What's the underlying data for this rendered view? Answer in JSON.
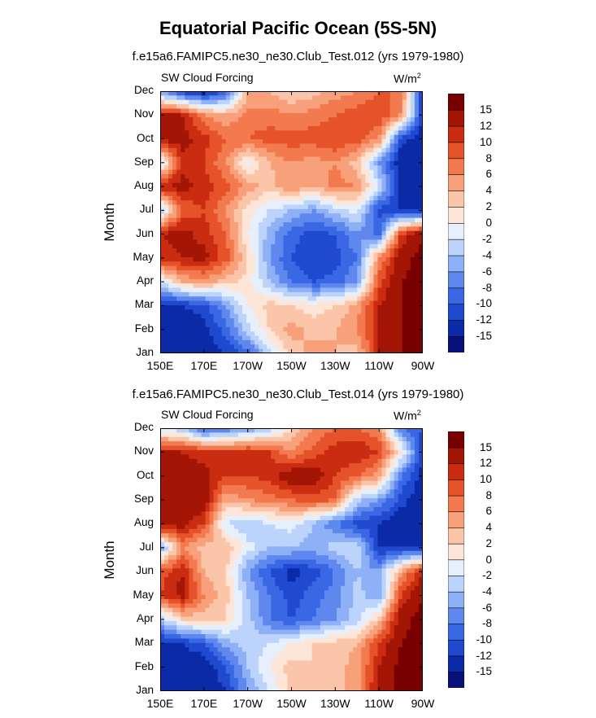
{
  "figure": {
    "title": "Equatorial Pacific Ocean (5S-5N)"
  },
  "chart_data": [
    {
      "type": "heatmap",
      "subtitle": "f.e15a6.FAMIPC5.ne30_ne30.Club_Test.012 (yrs 1979-1980)",
      "left_label": "SW Cloud Forcing",
      "units": "W/m",
      "units_sup": "2",
      "ylabel": "Month",
      "xlabel": "",
      "y": [
        "Jan",
        "Feb",
        "Mar",
        "Apr",
        "May",
        "Jun",
        "Jul",
        "Aug",
        "Sep",
        "Oct",
        "Nov",
        "Dec"
      ],
      "x_ticks": [
        "150E",
        "170E",
        "170W",
        "150W",
        "130W",
        "110W",
        "90W"
      ],
      "x_range": [
        150,
        270
      ],
      "colorbar": {
        "levels": [
          "-15",
          "-12",
          "-10",
          "-8",
          "-6",
          "-4",
          "-2",
          "0",
          "2",
          "4",
          "6",
          "8",
          "10",
          "12",
          "15"
        ],
        "colors": [
          "#08107a",
          "#0a2aa8",
          "#1f4ad0",
          "#3a68e4",
          "#5e88ee",
          "#8eb0f6",
          "#bcd3fb",
          "#e6f0fd",
          "#fde6d8",
          "#fbc5aa",
          "#f7a07a",
          "#f27a4e",
          "#e6522a",
          "#c92c10",
          "#a31505",
          "#780000"
        ]
      },
      "grid": {
        "x": [
          150,
          160,
          170,
          180,
          190,
          200,
          210,
          220,
          230,
          240,
          250,
          260,
          270
        ],
        "values": [
          [
            -14,
            -14,
            -14,
            -12,
            -9,
            -3,
            3,
            5,
            4,
            3,
            12,
            15,
            16
          ],
          [
            -14,
            -14,
            -13,
            -9,
            -3,
            2,
            5,
            3,
            4,
            6,
            12,
            15,
            16
          ],
          [
            -13,
            -12,
            -11,
            -6,
            0,
            3,
            2,
            1,
            2,
            5,
            12,
            15,
            16
          ],
          [
            -2,
            4,
            5,
            3,
            1,
            -4,
            -8,
            -10,
            -9,
            -6,
            9,
            15,
            16
          ],
          [
            11,
            12,
            13,
            9,
            2,
            -6,
            -10,
            -12,
            -11,
            -8,
            6,
            14,
            16
          ],
          [
            12,
            13,
            11,
            8,
            0,
            -5,
            -9,
            -11,
            -10,
            -6,
            -9,
            10,
            15
          ],
          [
            -4,
            8,
            10,
            6,
            1,
            -2,
            -4,
            -6,
            -3,
            -1,
            -11,
            -12,
            -13
          ],
          [
            12,
            13,
            11,
            9,
            5,
            3,
            6,
            4,
            7,
            6,
            -2,
            -13,
            -14
          ],
          [
            -2,
            11,
            10,
            6,
            -1,
            4,
            6,
            5,
            6,
            3,
            -6,
            -14,
            -14
          ],
          [
            13,
            13,
            11,
            8,
            8,
            9,
            9,
            9,
            10,
            9,
            6,
            -11,
            -14
          ],
          [
            13,
            12,
            6,
            4,
            7,
            7,
            6,
            7,
            8,
            9,
            10,
            6,
            -12
          ],
          [
            -6,
            -12,
            -14,
            -10,
            4,
            4,
            2,
            3,
            5,
            6,
            8,
            8,
            -14
          ]
        ]
      }
    },
    {
      "type": "heatmap",
      "subtitle": "f.e15a6.FAMIPC5.ne30_ne30.Club_Test.014 (yrs 1979-1980)",
      "left_label": "SW Cloud Forcing",
      "units": "W/m",
      "units_sup": "2",
      "ylabel": "Month",
      "xlabel": "",
      "y": [
        "Jan",
        "Feb",
        "Mar",
        "Apr",
        "May",
        "Jun",
        "Jul",
        "Aug",
        "Sep",
        "Oct",
        "Nov",
        "Dec"
      ],
      "x_ticks": [
        "150E",
        "170E",
        "170W",
        "150W",
        "130W",
        "110W",
        "90W"
      ],
      "x_range": [
        150,
        270
      ],
      "colorbar": {
        "levels": [
          "-15",
          "-12",
          "-10",
          "-8",
          "-6",
          "-4",
          "-2",
          "0",
          "2",
          "4",
          "6",
          "8",
          "10",
          "12",
          "15"
        ],
        "colors": [
          "#08107a",
          "#0a2aa8",
          "#1f4ad0",
          "#3a68e4",
          "#5e88ee",
          "#8eb0f6",
          "#bcd3fb",
          "#e6f0fd",
          "#fde6d8",
          "#fbc5aa",
          "#f7a07a",
          "#f27a4e",
          "#e6522a",
          "#c92c10",
          "#a31505",
          "#780000"
        ]
      },
      "grid": {
        "x": [
          150,
          160,
          170,
          180,
          190,
          200,
          210,
          220,
          230,
          240,
          250,
          260,
          270
        ],
        "values": [
          [
            -14,
            -14,
            -14,
            -12,
            -6,
            -2,
            3,
            4,
            3,
            5,
            13,
            16,
            16
          ],
          [
            -14,
            -14,
            -14,
            -10,
            -4,
            0,
            3,
            2,
            3,
            5,
            12,
            16,
            16
          ],
          [
            -13,
            -12,
            -10,
            -5,
            -3,
            -2,
            0,
            2,
            3,
            4,
            10,
            15,
            16
          ],
          [
            -4,
            2,
            3,
            2,
            -3,
            -8,
            -10,
            -8,
            -6,
            -3,
            3,
            14,
            16
          ],
          [
            10,
            13,
            6,
            3,
            -4,
            -8,
            -11,
            -9,
            -7,
            -3,
            -6,
            10,
            15
          ],
          [
            9,
            12,
            4,
            2,
            -6,
            -10,
            -13,
            -11,
            -8,
            -4,
            -6,
            5,
            12
          ],
          [
            -6,
            6,
            3,
            4,
            -1,
            -4,
            -4,
            -5,
            -3,
            -2,
            -12,
            -12,
            -12
          ],
          [
            14,
            13,
            10,
            -2,
            -4,
            -2,
            -1,
            -4,
            -8,
            -11,
            -12,
            -14,
            -14
          ],
          [
            15,
            15,
            14,
            4,
            6,
            7,
            8,
            9,
            8,
            -3,
            -6,
            -11,
            -14
          ],
          [
            14,
            14,
            13,
            10,
            10,
            11,
            14,
            14,
            10,
            8,
            5,
            -8,
            -13
          ],
          [
            12,
            12,
            11,
            10,
            11,
            10,
            6,
            9,
            11,
            12,
            10,
            1,
            -12
          ],
          [
            -2,
            -4,
            -10,
            -8,
            -6,
            -4,
            2,
            6,
            8,
            8,
            6,
            -8,
            -10
          ]
        ]
      }
    }
  ]
}
